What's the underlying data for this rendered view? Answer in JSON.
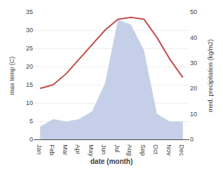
{
  "chart_data": {
    "type": "line",
    "xlabel": "date (month)",
    "ylabel": "max temp (C)",
    "y2label": "med. precipitation (kg/m2)",
    "categories": [
      "Jan",
      "Feb",
      "Mar",
      "Apr",
      "May",
      "Jun",
      "Jul",
      "Aug",
      "Sep",
      "Oct",
      "Nov",
      "Dec"
    ],
    "series": [
      {
        "type": "area",
        "axis": "y2",
        "color": "#c5d0e8",
        "values": [
          5,
          8,
          7,
          8,
          11,
          22,
          47,
          45,
          35,
          10,
          7,
          7
        ]
      },
      {
        "type": "line",
        "color": "#c0504d",
        "values": [
          14,
          15,
          18,
          22,
          26,
          30,
          33,
          33.5,
          33,
          28,
          22,
          17
        ]
      }
    ],
    "ylim": [
      0,
      35
    ],
    "yticks": [
      0,
      5,
      10,
      15,
      20,
      25,
      30,
      35
    ],
    "y2lim": [
      0,
      50
    ],
    "y2ticks": [
      0,
      10,
      20,
      30,
      40,
      50
    ],
    "grid": true
  }
}
